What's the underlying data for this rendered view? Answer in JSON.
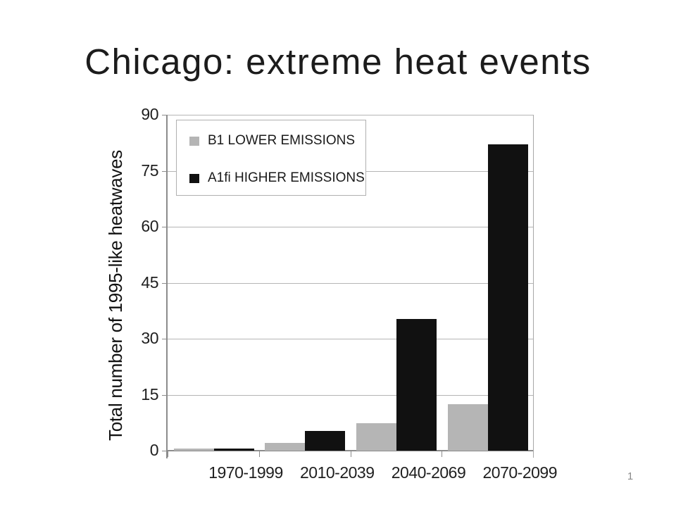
{
  "slide": {
    "title": "Chicago: extreme heat events",
    "page_number": "1"
  },
  "chart_data": {
    "type": "bar",
    "title": "Chicago: extreme heat events",
    "categories": [
      "1970-1999",
      "2010-2039",
      "2040-2069",
      "2070-2099"
    ],
    "series": [
      {
        "name": "B1 LOWER EMISSIONS",
        "color": "#b5b5b5",
        "values": [
          0.6,
          2.1,
          7.4,
          12.5
        ]
      },
      {
        "name": "A1fi HIGHER EMISSIONS",
        "color": "#111111",
        "values": [
          0.5,
          5.3,
          35.3,
          82
        ]
      }
    ],
    "xlabel": "",
    "ylabel": "Total number of 1995-like heatwaves",
    "yticks": [
      0,
      15,
      30,
      45,
      60,
      75,
      90
    ],
    "ylim": [
      0,
      90
    ],
    "grid": true,
    "legend_position": "top-left-inside",
    "colors": {
      "gridline": "#b5b5b5",
      "axis": "#8c8c8c",
      "tick_label": "#1f1f1f",
      "legend_border": "#b0b0b0"
    }
  }
}
